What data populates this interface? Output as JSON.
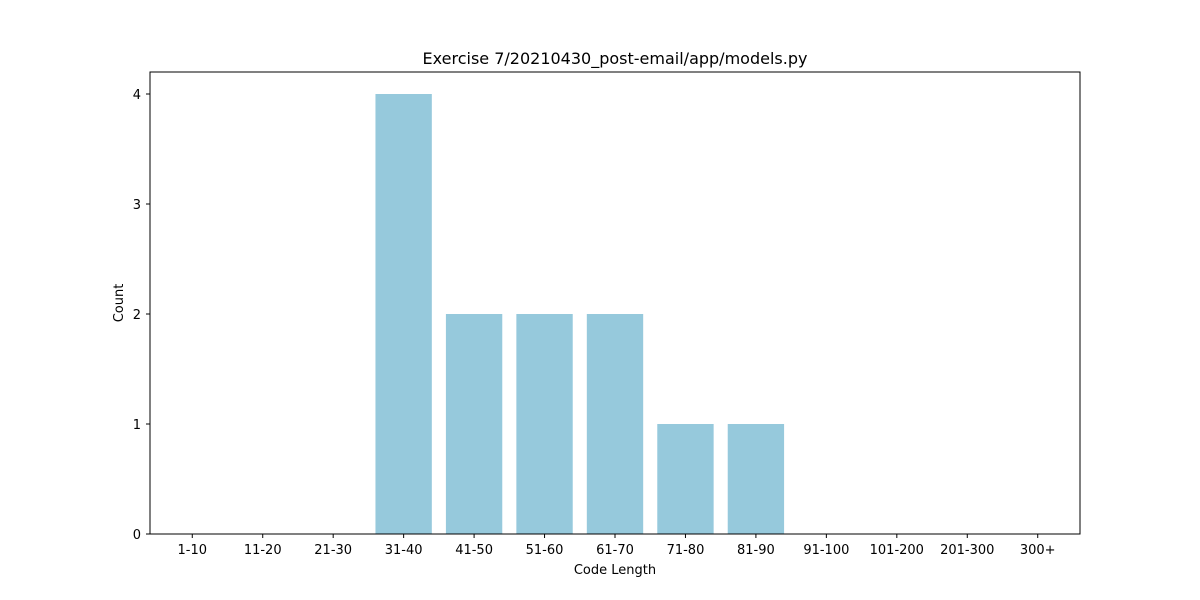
{
  "chart_data": {
    "type": "bar",
    "title": "Exercise 7/20210430_post-email/app/models.py",
    "xlabel": "Code Length",
    "ylabel": "Count",
    "categories": [
      "1-10",
      "11-20",
      "21-30",
      "31-40",
      "41-50",
      "51-60",
      "61-70",
      "71-80",
      "81-90",
      "91-100",
      "101-200",
      "201-300",
      "300+"
    ],
    "values": [
      0,
      0,
      0,
      4,
      2,
      2,
      2,
      1,
      1,
      0,
      0,
      0,
      0
    ],
    "ylim": [
      0,
      4.2
    ],
    "yticks": [
      0,
      1,
      2,
      3,
      4
    ],
    "bar_color": "#96c9dc",
    "grid": false,
    "legend": "none"
  }
}
